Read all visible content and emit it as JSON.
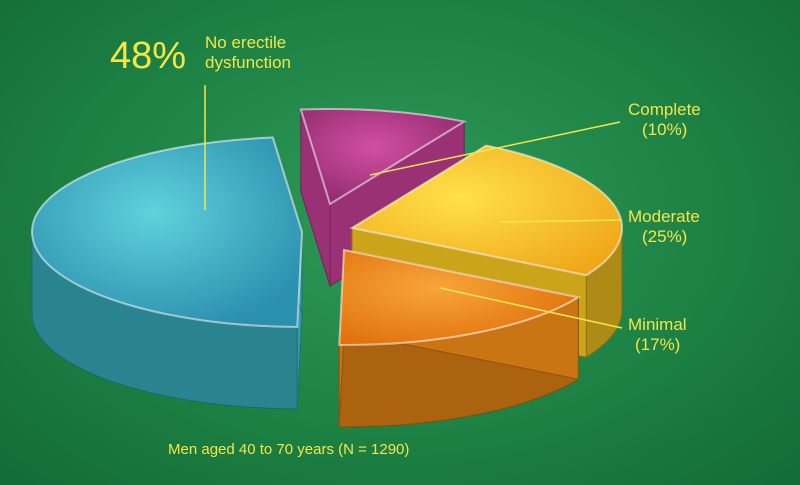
{
  "chart_data": {
    "type": "pie",
    "slices": [
      {
        "key": "none",
        "label": "No erectile dysfunction",
        "label_lines": [
          "No erectile",
          "dysfunction"
        ],
        "value": 48,
        "value_label": "48%",
        "color": "#3bb8c6"
      },
      {
        "key": "complete",
        "label": "Complete",
        "label_lines": [
          "Complete",
          "(10%)"
        ],
        "value": 10,
        "color": "#b63a8a"
      },
      {
        "key": "moderate",
        "label": "Moderate",
        "label_lines": [
          "Moderate",
          "(25%)"
        ],
        "value": 25,
        "color": "#f0c11f"
      },
      {
        "key": "minimal",
        "label": "Minimal",
        "label_lines": [
          "Minimal",
          "(17%)"
        ],
        "value": 17,
        "color": "#ee8a16"
      }
    ],
    "footnote": "Men aged 40 to 70 years (N = 1290)"
  },
  "colors": {
    "text": "#f3e64b",
    "leader": "#f3e64b",
    "background": "#1d8244"
  }
}
